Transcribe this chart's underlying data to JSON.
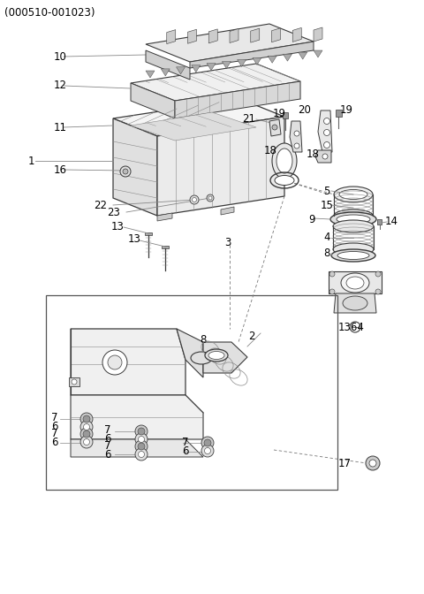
{
  "title": "(000510-001023)",
  "bg_color": "#ffffff",
  "lc": "#3a3a3a",
  "glc": "#888888",
  "title_fontsize": 8.5,
  "label_fontsize": 8.5
}
